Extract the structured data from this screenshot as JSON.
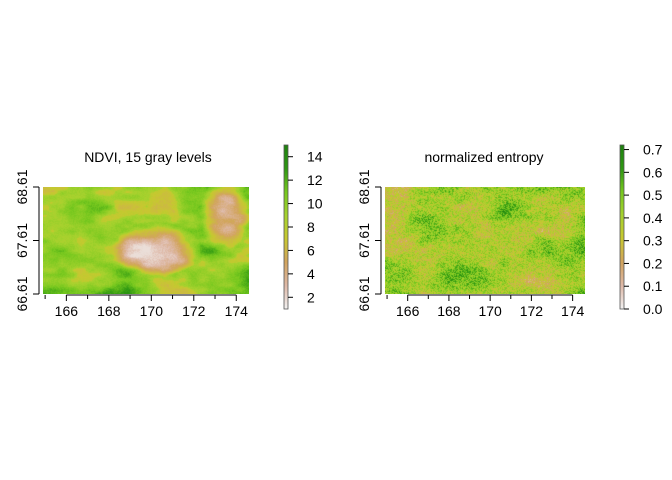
{
  "chart_data": [
    {
      "type": "heatmap",
      "title": "NDVI, 15 gray levels",
      "xlabel": "",
      "ylabel": "",
      "x_ticks": [
        166,
        168,
        170,
        172,
        174
      ],
      "y_ticks": [
        "66.61",
        "67.61",
        "68.61"
      ],
      "xlim": [
        164.9,
        174.6
      ],
      "ylim": [
        66.61,
        68.61
      ],
      "legend": {
        "position": "right",
        "ticks": [
          2,
          4,
          6,
          8,
          10,
          12,
          14
        ],
        "range": [
          1,
          15
        ],
        "colors": [
          "#f2f2f2",
          "#deb9a8",
          "#d2a45e",
          "#c8c830",
          "#a6d22e",
          "#76c81e",
          "#2e9812",
          "#1e820e"
        ]
      },
      "grid": false
    },
    {
      "type": "heatmap",
      "title": "normalized entropy",
      "xlabel": "",
      "ylabel": "",
      "x_ticks": [
        166,
        168,
        170,
        172,
        174
      ],
      "y_ticks": [
        "66.61",
        "67.61",
        "68.61"
      ],
      "xlim": [
        164.9,
        174.6
      ],
      "ylim": [
        66.61,
        68.61
      ],
      "legend": {
        "position": "right",
        "ticks": [
          "0.0",
          "0.1",
          "0.2",
          "0.3",
          "0.4",
          "0.5",
          "0.6",
          "0.7"
        ],
        "range": [
          0,
          0.72
        ],
        "colors": [
          "#f2f2f2",
          "#deb9a8",
          "#d2a45e",
          "#c8c830",
          "#a6d22e",
          "#76c81e",
          "#2e9812",
          "#1e820e"
        ]
      },
      "grid": false
    }
  ]
}
